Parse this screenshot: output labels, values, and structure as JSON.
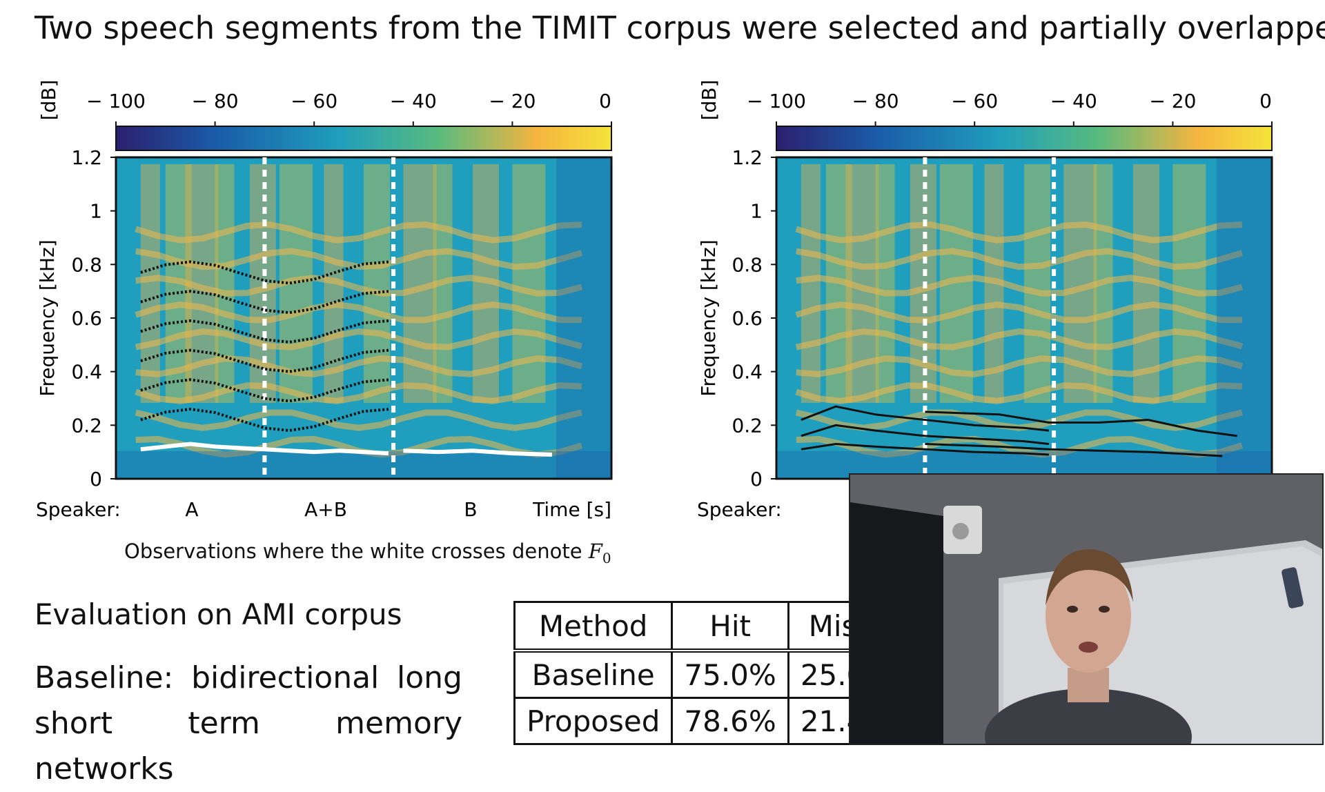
{
  "headline": "Two speech segments from the TIMIT corpus were selected and partially overlapped.",
  "colorbar": {
    "unit_label": "[dB]",
    "ticks": [
      "− 100",
      "− 80",
      "− 60",
      "− 40",
      "− 20",
      "0"
    ],
    "colors": [
      "#2b1f6e",
      "#1a5ba8",
      "#1f9ebd",
      "#58bb7e",
      "#f5b53f",
      "#f5e43a"
    ]
  },
  "chart_data": [
    {
      "type": "heatmap",
      "title": "",
      "xlabel": "Time [s]",
      "ylabel": "Frequency [kHz]",
      "ylim": [
        0,
        1.2
      ],
      "yticks": [
        "0",
        "0.2",
        "0.4",
        "0.6",
        "0.8",
        "1",
        "1.2"
      ],
      "colorbar_range_db": [
        -100,
        0
      ],
      "speaker_row_label": "Speaker:",
      "speaker_segments": [
        "A",
        "A+B",
        "B"
      ],
      "segment_boundaries": [
        0.3,
        0.56
      ],
      "f0_tracks": [
        {
          "x": [
            0.05,
            0.1,
            0.15,
            0.2,
            0.25,
            0.3,
            0.35,
            0.4,
            0.45,
            0.5,
            0.55
          ],
          "y": [
            0.11,
            0.12,
            0.13,
            0.12,
            0.115,
            0.11,
            0.105,
            0.1,
            0.105,
            0.1,
            0.095
          ]
        },
        {
          "x": [
            0.58,
            0.65,
            0.72,
            0.8,
            0.88
          ],
          "y": [
            0.105,
            0.1,
            0.105,
            0.095,
            0.09
          ]
        }
      ]
    },
    {
      "type": "heatmap",
      "title": "",
      "xlabel": "",
      "ylabel": "Frequency [kHz]",
      "ylim": [
        0,
        1.2
      ],
      "yticks": [
        "0",
        "0.2",
        "0.4",
        "0.6",
        "0.8",
        "1",
        "1.2"
      ],
      "colorbar_range_db": [
        -100,
        0
      ],
      "speaker_row_label": "Speaker:",
      "estimated_tracks": [
        {
          "x": [
            0.05,
            0.12,
            0.2,
            0.3,
            0.4,
            0.5,
            0.55
          ],
          "y": [
            0.22,
            0.27,
            0.24,
            0.22,
            0.2,
            0.19,
            0.18
          ]
        },
        {
          "x": [
            0.05,
            0.12,
            0.2,
            0.3,
            0.4,
            0.5,
            0.55
          ],
          "y": [
            0.16,
            0.2,
            0.18,
            0.16,
            0.15,
            0.14,
            0.13
          ]
        },
        {
          "x": [
            0.05,
            0.12,
            0.2,
            0.3,
            0.4,
            0.5,
            0.55
          ],
          "y": [
            0.11,
            0.13,
            0.12,
            0.11,
            0.1,
            0.095,
            0.09
          ]
        },
        {
          "x": [
            0.3,
            0.45,
            0.55,
            0.65,
            0.75,
            0.85,
            0.93
          ],
          "y": [
            0.25,
            0.24,
            0.21,
            0.21,
            0.22,
            0.18,
            0.16
          ]
        },
        {
          "x": [
            0.3,
            0.45,
            0.55,
            0.65,
            0.75,
            0.85,
            0.9
          ],
          "y": [
            0.13,
            0.12,
            0.11,
            0.105,
            0.1,
            0.09,
            0.085
          ]
        }
      ]
    }
  ],
  "caption_prefix": "Observations where the white crosses denote",
  "caption_symbol": "F",
  "caption_subscript": "0",
  "evaluation_title": "Evaluation on AMI corpus",
  "baseline_lines": [
    "Baseline:  bidirectional  long",
    "short  term  memory  networks"
  ],
  "results_table": {
    "headers": [
      "Method",
      "Hit",
      "Mis"
    ],
    "rows": [
      [
        "Baseline",
        "75.0%",
        "25.0"
      ],
      [
        "Proposed",
        "78.6%",
        "21.4"
      ]
    ]
  }
}
